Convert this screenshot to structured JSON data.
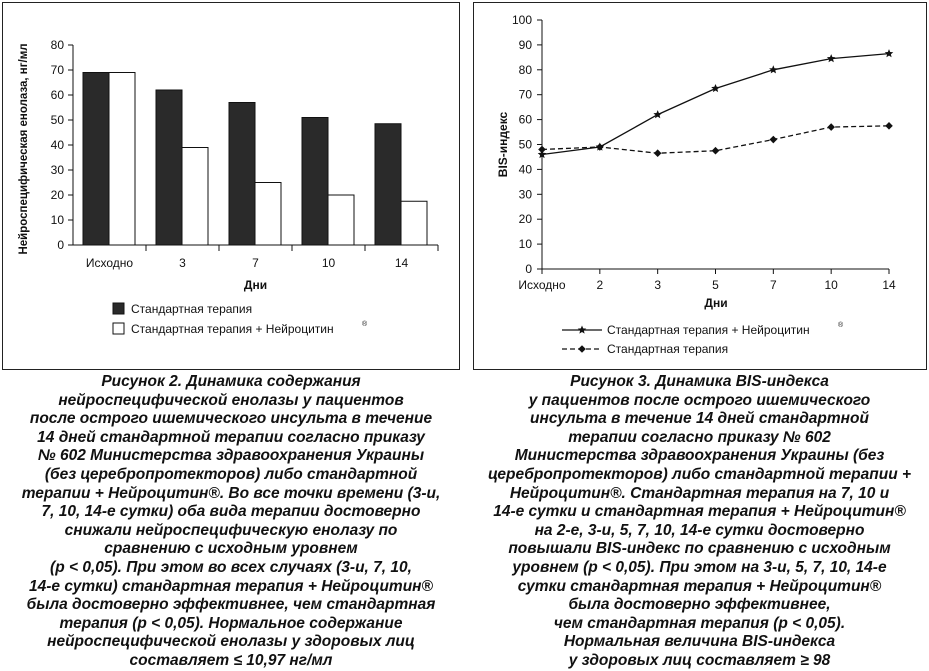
{
  "chart_data": [
    {
      "type": "bar",
      "categories": [
        "Исходно",
        "3",
        "7",
        "10",
        "14"
      ],
      "series": [
        {
          "name": "Стандартная терапия",
          "values": [
            69,
            62,
            57,
            51,
            48.5
          ],
          "color": "#2a2a2a"
        },
        {
          "name": "Стандартная терапия + Нейроцитин",
          "values": [
            69,
            39,
            25,
            20,
            17.5
          ],
          "color": "#ffffff"
        }
      ],
      "xlabel": "Дни",
      "ylabel": "Нейроспецифическая енолаза, нг/мл",
      "ylim": [
        0,
        80
      ],
      "yticks": [
        "0",
        "10",
        "20",
        "30",
        "40",
        "50",
        "60",
        "70",
        "80"
      ],
      "grid": false,
      "legend": "bottom"
    },
    {
      "type": "line",
      "x": [
        "Исходно",
        "2",
        "3",
        "5",
        "7",
        "10",
        "14"
      ],
      "series": [
        {
          "name": "Стандартная терапия + Нейроцитин",
          "values": [
            46,
            49,
            62,
            72.5,
            80,
            84.5,
            86.5
          ],
          "marker": "star",
          "linestyle": "solid"
        },
        {
          "name": "Стандартная терапия",
          "values": [
            48,
            49,
            46.5,
            47.5,
            52,
            57,
            57.5
          ],
          "marker": "diamond",
          "linestyle": "dashed"
        }
      ],
      "xlabel": "Дни",
      "ylabel": "BIS-индекс",
      "ylim": [
        0,
        100
      ],
      "yticks": [
        "0",
        "10",
        "20",
        "30",
        "40",
        "50",
        "60",
        "70",
        "80",
        "90",
        "100"
      ],
      "grid": false,
      "legend": "bottom"
    }
  ],
  "legend_sup": "®",
  "captions": {
    "left": [
      "Рисунок 2. Динамика содержания",
      "нейроспецифической енолазы у пациентов",
      "после острого ишемического инсульта в течение",
      "14 дней стандартной терапии согласно приказу",
      "№ 602 Министерства здравоохранения Украины",
      "(без церебропротекторов) либо стандартной",
      "терапии + Нейроцитин®. Во все точки времени (3-и,",
      "7, 10, 14-е сутки) оба вида терапии достоверно",
      "снижали нейроспецифическую енолазу по",
      "сравнению с исходным уровнем",
      "(p < 0,05). При этом во всех случаях (3-и, 7, 10,",
      "14-е сутки) стандартная терапия + Нейроцитин®",
      "была достоверно эффективнее, чем стандартная",
      "терапия (p < 0,05). Нормальное содержание",
      "нейроспецифической енолазы у здоровых лиц",
      "составляет ≤ 10,97 нг/мл"
    ],
    "right": [
      "Рисунок 3. Динамика BIS-индекса",
      "у пациентов после острого ишемического",
      "инсульта в течение 14 дней стандартной",
      "терапии согласно приказу № 602",
      "Министерства здравоохранения Украины (без",
      "церебропротекторов) либо стандартной терапии +",
      "Нейроцитин®. Стандартная терапия на 7, 10 и",
      "14-е сутки и стандартная терапия + Нейроцитин®",
      "на 2-е, 3-и, 5, 7, 10, 14-е сутки достоверно",
      "повышали BIS-индекс по сравнению с исходным",
      "уровнем (p < 0,05). При этом на 3-и, 5, 7, 10, 14-е",
      "сутки стандартная терапия + Нейроцитин®",
      "была достоверно эффективнее,",
      "чем стандартная терапия (p < 0,05).",
      "Нормальная величина BIS-индекса",
      "у здоровых лиц составляет ≥ 98"
    ]
  }
}
